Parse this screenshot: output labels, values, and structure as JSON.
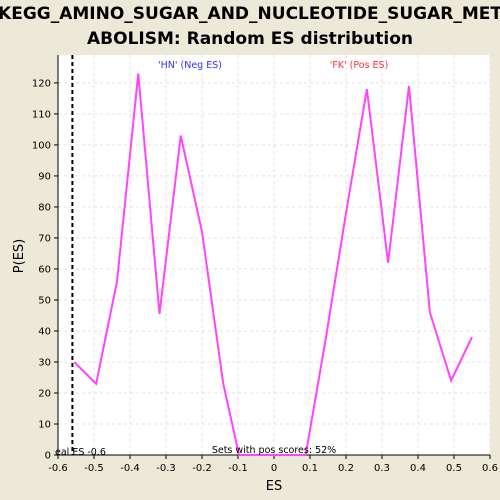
{
  "chart_data": {
    "type": "line",
    "title_lines": [
      "KEGG_AMINO_SUGAR_AND_NUCLEOTIDE_SUGAR_MET",
      "ABOLISM: Random ES distribution"
    ],
    "xlabel": "ES",
    "ylabel": "P(ES)",
    "xlim": [
      -0.6,
      0.6
    ],
    "ylim": [
      0,
      129
    ],
    "x_ticks": [
      -0.6,
      -0.5,
      -0.4,
      -0.3,
      -0.2,
      -0.1,
      0.0,
      0.1,
      0.2,
      0.3,
      0.4,
      0.5,
      0.6
    ],
    "x_tick_labels": [
      "-0.6",
      "-0.5",
      "-0.4",
      "-0.3",
      "-0.2",
      "-0.1",
      "0",
      "0.1",
      "0.2",
      "0.3",
      "0.4",
      "0.5",
      "0.6"
    ],
    "y_ticks": [
      0,
      10,
      20,
      30,
      40,
      50,
      60,
      70,
      80,
      90,
      100,
      110,
      120
    ],
    "y_tick_labels": [
      "0",
      "10",
      "20",
      "30",
      "40",
      "50",
      "60",
      "70",
      "80",
      "90",
      "100",
      "110",
      "120"
    ],
    "grid": true,
    "series": [
      {
        "color": "#ff44ff",
        "x": [
          -0.555,
          -0.494,
          -0.436,
          -0.377,
          -0.318,
          -0.259,
          -0.2,
          -0.141,
          -0.097,
          0.0,
          0.088,
          0.143,
          0.2,
          0.258,
          0.317,
          0.375,
          0.433,
          0.492,
          0.55
        ],
        "y": [
          30,
          23,
          56,
          123,
          45.5,
          103,
          72,
          23,
          0,
          0,
          0,
          37,
          78,
          118,
          62,
          119,
          46,
          24,
          38
        ]
      }
    ],
    "actual_es_line": {
      "x": -0.56,
      "label": "eal ES -0.6"
    },
    "annotations": {
      "neg_label": "'HN' (Neg ES)",
      "pos_label": "'FK' (Pos ES)",
      "pos_scores_text": "Sets with pos scores: 52%"
    },
    "colors": {
      "neg": "#3333ff",
      "pos": "#ff3333",
      "plot_bg": "#ffffff",
      "page_bg": "#ece9d8"
    }
  }
}
